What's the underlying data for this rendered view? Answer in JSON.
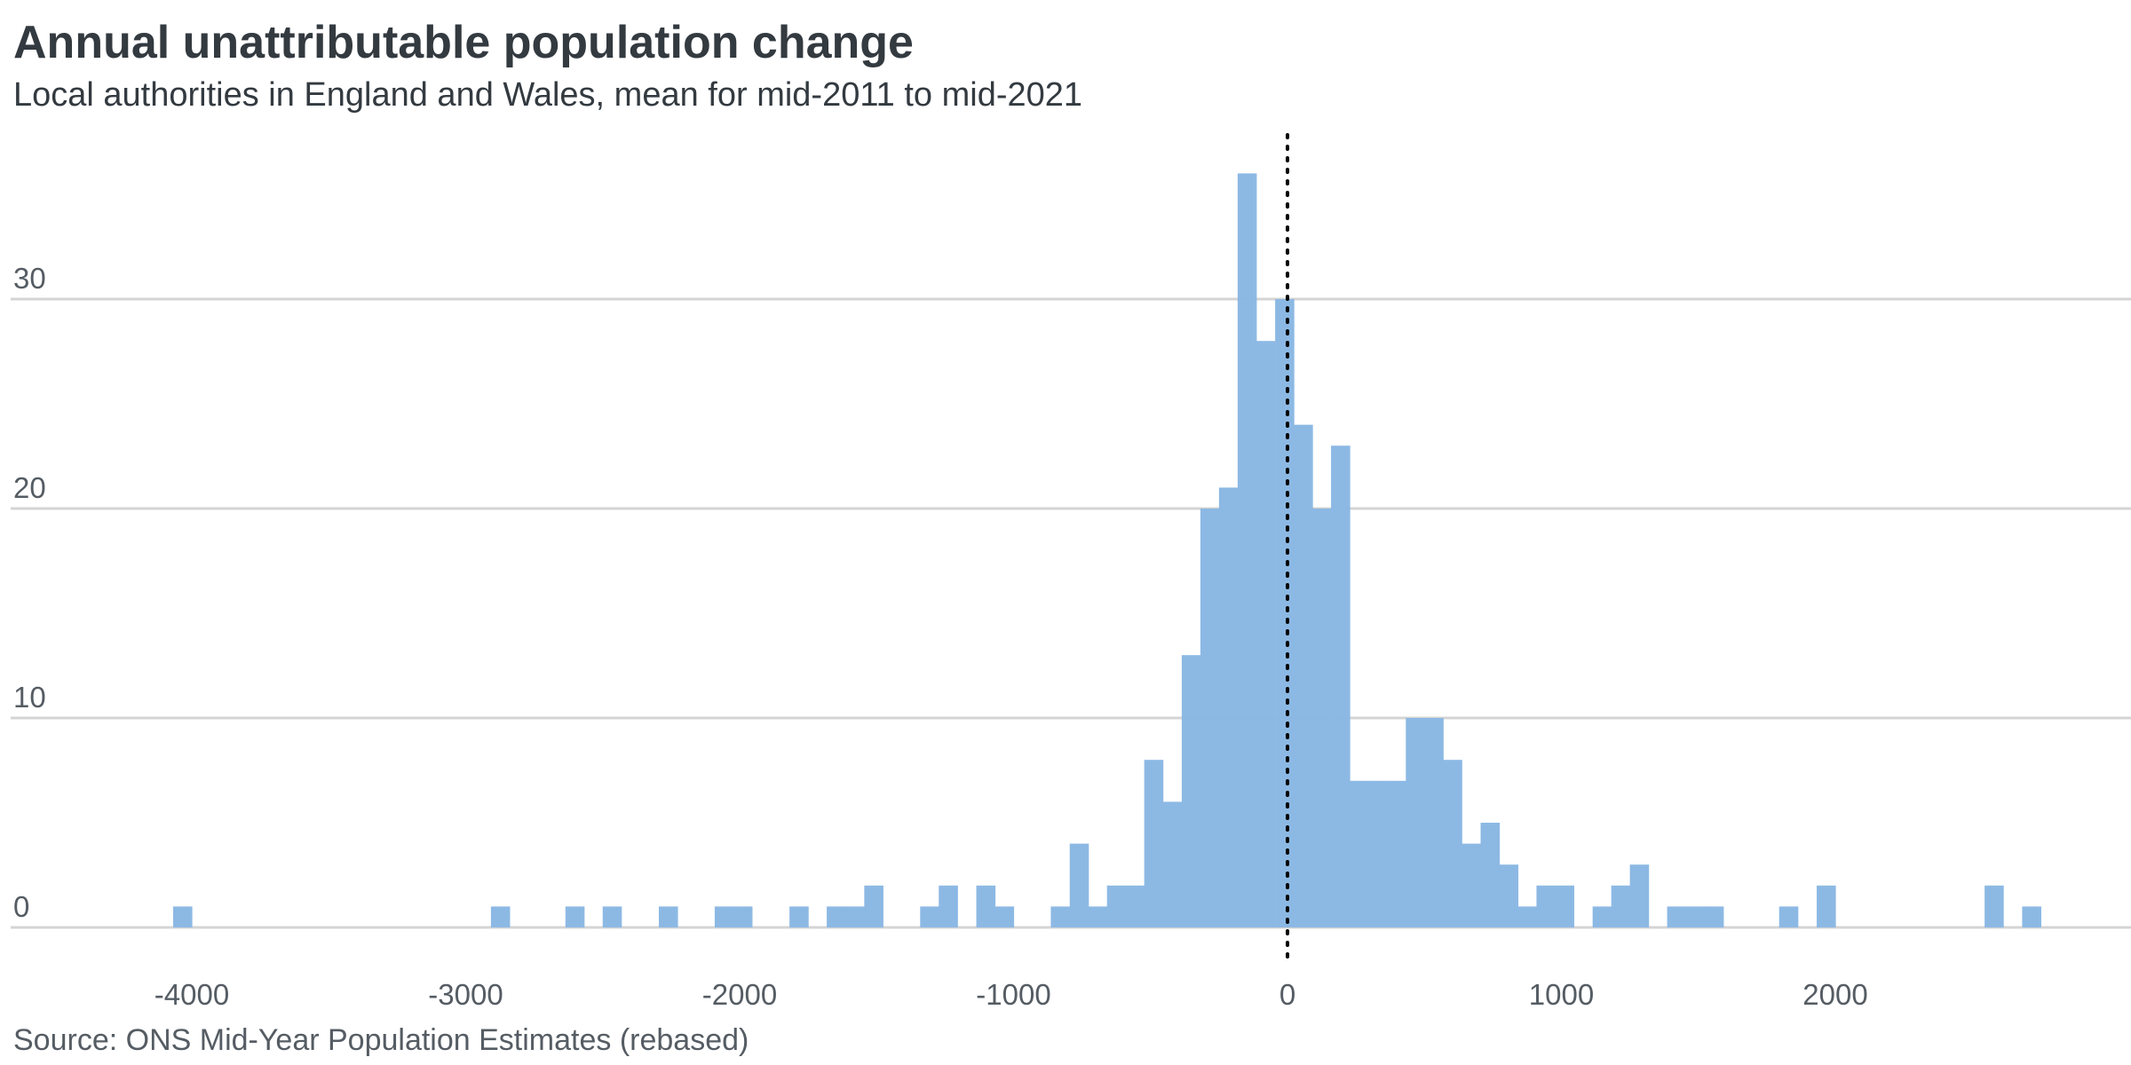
{
  "title": "Annual unattributable population change",
  "subtitle": "Local authorities in England and Wales, mean for mid-2011 to mid-2021",
  "source": "Source: ONS Mid-Year Population Estimates (rebased)",
  "colors": {
    "bar": "#8ab8e3",
    "grid": "#d4d4d4",
    "refline": "#000000"
  },
  "chart_data": {
    "type": "bar",
    "title": "Annual unattributable population change",
    "subtitle": "Local authorities in England and Wales, mean for mid-2011 to mid-2021",
    "xlabel": "",
    "ylabel": "",
    "xlim": [
      -4400,
      3000
    ],
    "ylim": [
      0,
      36
    ],
    "bin_width": 68,
    "grid": true,
    "reference_line_x": 0,
    "xticks": [
      -4000,
      -3000,
      -2000,
      -1000,
      0,
      1000,
      2000
    ],
    "xtick_labels": [
      "-4000",
      "-3000",
      "-2000",
      "-1000",
      "0",
      "1000",
      "2000"
    ],
    "yticks": [
      0,
      10,
      20,
      30
    ],
    "ytick_labels": [
      "0",
      "10",
      "20",
      "30"
    ],
    "bars": [
      {
        "x": -4068,
        "y": 1
      },
      {
        "x": -2908,
        "y": 1
      },
      {
        "x": -2636,
        "y": 1
      },
      {
        "x": -2500,
        "y": 1
      },
      {
        "x": -2295,
        "y": 1
      },
      {
        "x": -2091,
        "y": 1
      },
      {
        "x": -2023,
        "y": 1
      },
      {
        "x": -1818,
        "y": 1
      },
      {
        "x": -1682,
        "y": 1
      },
      {
        "x": -1614,
        "y": 1
      },
      {
        "x": -1545,
        "y": 2
      },
      {
        "x": -1341,
        "y": 1
      },
      {
        "x": -1273,
        "y": 2
      },
      {
        "x": -1136,
        "y": 2
      },
      {
        "x": -1068,
        "y": 1
      },
      {
        "x": -864,
        "y": 1
      },
      {
        "x": -795,
        "y": 4
      },
      {
        "x": -727,
        "y": 1
      },
      {
        "x": -659,
        "y": 2
      },
      {
        "x": -591,
        "y": 2
      },
      {
        "x": -523,
        "y": 8
      },
      {
        "x": -455,
        "y": 6
      },
      {
        "x": -386,
        "y": 13
      },
      {
        "x": -318,
        "y": 20
      },
      {
        "x": -250,
        "y": 21
      },
      {
        "x": -182,
        "y": 36
      },
      {
        "x": -114,
        "y": 28
      },
      {
        "x": -45,
        "y": 30
      },
      {
        "x": 23,
        "y": 24
      },
      {
        "x": 91,
        "y": 20
      },
      {
        "x": 159,
        "y": 23
      },
      {
        "x": 227,
        "y": 7
      },
      {
        "x": 295,
        "y": 7
      },
      {
        "x": 364,
        "y": 7
      },
      {
        "x": 432,
        "y": 10
      },
      {
        "x": 500,
        "y": 10
      },
      {
        "x": 568,
        "y": 8
      },
      {
        "x": 636,
        "y": 4
      },
      {
        "x": 705,
        "y": 5
      },
      {
        "x": 773,
        "y": 3
      },
      {
        "x": 841,
        "y": 1
      },
      {
        "x": 909,
        "y": 2
      },
      {
        "x": 977,
        "y": 2
      },
      {
        "x": 1114,
        "y": 1
      },
      {
        "x": 1182,
        "y": 2
      },
      {
        "x": 1250,
        "y": 3
      },
      {
        "x": 1386,
        "y": 1
      },
      {
        "x": 1455,
        "y": 1
      },
      {
        "x": 1523,
        "y": 1
      },
      {
        "x": 1795,
        "y": 1
      },
      {
        "x": 1932,
        "y": 2
      },
      {
        "x": 2545,
        "y": 2
      },
      {
        "x": 2682,
        "y": 1
      }
    ]
  }
}
